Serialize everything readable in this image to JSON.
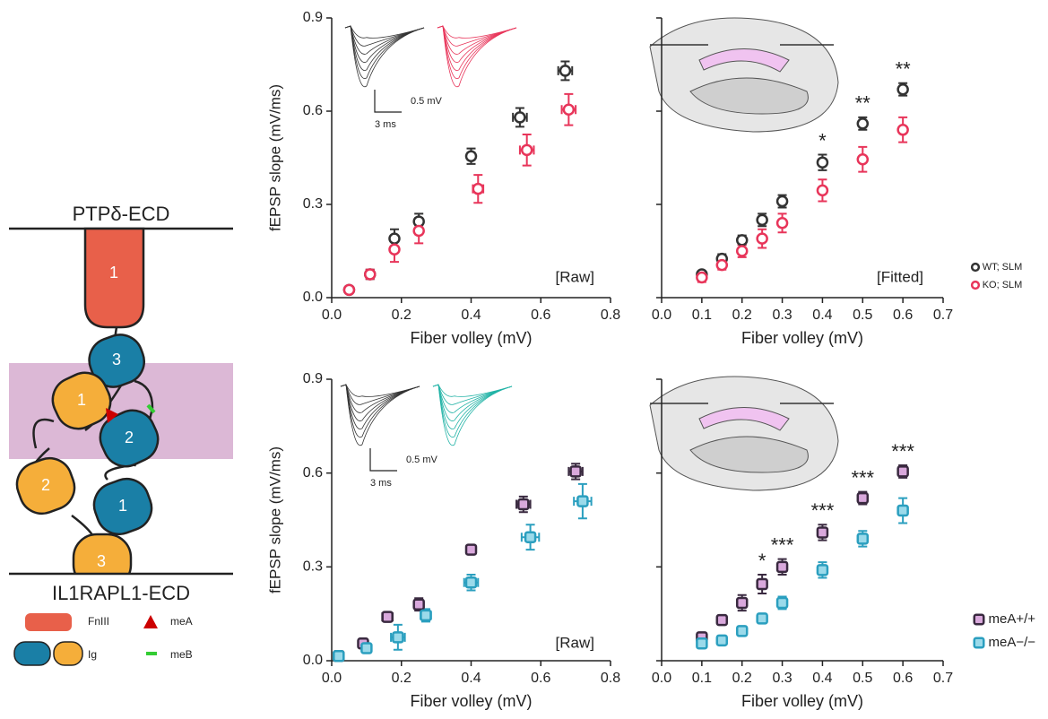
{
  "diagram": {
    "top_label": "PTPδ-ECD",
    "bottom_label": "IL1RAPL1-ECD",
    "domains": {
      "fniii": "1",
      "ig_top": "3",
      "ig_mid": "2",
      "ig_low": "1",
      "ig_orange_top": "1",
      "ig_orange_mid": "2",
      "ig_orange_low": "3"
    },
    "legend": {
      "fniii": "FnIII",
      "ig": "Ig",
      "mea": "meA",
      "meb": "meB"
    }
  },
  "chart_data": [
    {
      "type": "scatter",
      "x_label": "Fiber volley (mV)",
      "y_label": "fEPSP slope (mV/ms)",
      "tag": "[Raw]",
      "inset": {
        "scale_y": "0.5 mV",
        "scale_x": "3 ms",
        "colors": [
          "#333333",
          "#e8355a"
        ]
      },
      "xlim": [
        0,
        0.8
      ],
      "ylim": [
        0,
        0.9
      ],
      "xticks": [
        {
          "value": 0,
          "label": "0.0"
        },
        0.2,
        0.4,
        0.6,
        0.8
      ],
      "yticks": [
        {
          "value": 0,
          "label": "0.0"
        },
        0.3,
        0.6,
        0.9
      ],
      "series": [
        {
          "color": "#333333",
          "fill": "#ffffff",
          "marker": "circle",
          "x": [
            0.05,
            0.11,
            0.18,
            0.25,
            0.4,
            0.54,
            0.67
          ],
          "values": [
            0.025,
            0.075,
            0.19,
            0.245,
            0.455,
            0.58,
            0.73
          ],
          "errors": [
            0.01,
            0.015,
            0.03,
            0.025,
            0.025,
            0.03,
            0.03
          ],
          "x_errors": [
            0,
            0,
            0,
            0.01,
            0.01,
            0.02,
            0.02
          ]
        },
        {
          "color": "#e8355a",
          "fill": "#ffffff",
          "marker": "circle",
          "x": [
            0.05,
            0.11,
            0.18,
            0.25,
            0.42,
            0.56,
            0.68
          ],
          "values": [
            0.025,
            0.075,
            0.155,
            0.215,
            0.35,
            0.475,
            0.605
          ],
          "errors": [
            0.01,
            0.015,
            0.04,
            0.04,
            0.045,
            0.05,
            0.05
          ],
          "x_errors": [
            0,
            0,
            0,
            0.01,
            0.015,
            0.02,
            0.02
          ]
        }
      ]
    },
    {
      "type": "scatter",
      "x_label": "Fiber volley (mV)",
      "tag": "[Fitted]",
      "show_ytick_labels": false,
      "hippocampus": true,
      "xlim": [
        0,
        0.7
      ],
      "ylim": [
        0,
        0.9
      ],
      "xticks": [
        {
          "value": 0,
          "label": "0.0"
        },
        0.1,
        0.2,
        0.3,
        0.4,
        0.5,
        0.6,
        0.7
      ],
      "yticks": [
        0,
        0.3,
        0.6,
        0.9
      ],
      "series": [
        {
          "name": "WT; SLM",
          "color": "#333333",
          "fill": "#ffffff",
          "marker": "circle",
          "x": [
            0.1,
            0.15,
            0.2,
            0.25,
            0.3,
            0.4,
            0.5,
            0.6
          ],
          "values": [
            0.075,
            0.125,
            0.185,
            0.25,
            0.31,
            0.435,
            0.56,
            0.67
          ],
          "errors": [
            0.01,
            0.015,
            0.015,
            0.02,
            0.02,
            0.025,
            0.02,
            0.02
          ],
          "x_errors": [
            0,
            0,
            0,
            0,
            0,
            0,
            0,
            0
          ]
        },
        {
          "name": "KO; SLM",
          "color": "#e8355a",
          "fill": "#ffffff",
          "marker": "circle",
          "x": [
            0.1,
            0.15,
            0.2,
            0.25,
            0.3,
            0.4,
            0.5,
            0.6
          ],
          "values": [
            0.065,
            0.105,
            0.15,
            0.19,
            0.24,
            0.345,
            0.445,
            0.54
          ],
          "errors": [
            0.015,
            0.015,
            0.02,
            0.03,
            0.03,
            0.035,
            0.04,
            0.04
          ],
          "x_errors": [
            0,
            0,
            0,
            0,
            0,
            0,
            0,
            0
          ]
        }
      ],
      "annotations": [
        {
          "text": "*",
          "x": 0.4
        },
        {
          "text": "**",
          "x": 0.5
        },
        {
          "text": "**",
          "x": 0.6
        }
      ]
    },
    {
      "type": "scatter",
      "x_label": "Fiber volley (mV)",
      "y_label": "fEPSP slope (mV/ms)",
      "tag": "[Raw]",
      "inset": {
        "scale_y": "0.5 mV",
        "scale_x": "3 ms",
        "colors": [
          "#333333",
          "#22b3a6"
        ]
      },
      "xlim": [
        0,
        0.8
      ],
      "ylim": [
        0,
        0.9
      ],
      "xticks": [
        {
          "value": 0,
          "label": "0.0"
        },
        0.2,
        0.4,
        0.6,
        0.8
      ],
      "yticks": [
        {
          "value": 0,
          "label": "0.0"
        },
        0.3,
        0.6,
        0.9
      ],
      "series": [
        {
          "color": "#3a2a40",
          "fill": "#d9a8dc",
          "marker": "square",
          "x": [
            0.02,
            0.09,
            0.16,
            0.25,
            0.4,
            0.55,
            0.7
          ],
          "values": [
            0.015,
            0.055,
            0.14,
            0.18,
            0.355,
            0.5,
            0.605
          ],
          "errors": [
            0.005,
            0.01,
            0.015,
            0.02,
            0.01,
            0.025,
            0.025
          ],
          "x_errors": [
            0,
            0,
            0.015,
            0.01,
            0.01,
            0.02,
            0.02
          ]
        },
        {
          "color": "#2b9fbf",
          "fill": "#9bdaea",
          "marker": "square",
          "x": [
            0.02,
            0.1,
            0.19,
            0.27,
            0.4,
            0.57,
            0.72
          ],
          "values": [
            0.015,
            0.04,
            0.075,
            0.145,
            0.25,
            0.395,
            0.51
          ],
          "errors": [
            0.005,
            0.01,
            0.04,
            0.02,
            0.025,
            0.04,
            0.055
          ],
          "x_errors": [
            0,
            0,
            0.02,
            0.015,
            0.02,
            0.025,
            0.025
          ]
        }
      ]
    },
    {
      "type": "scatter",
      "x_label": "Fiber volley (mV)",
      "show_ytick_labels": false,
      "hippocampus": true,
      "xlim": [
        0,
        0.7
      ],
      "ylim": [
        0,
        0.9
      ],
      "xticks": [
        {
          "value": 0,
          "label": "0.0"
        },
        0.1,
        0.2,
        0.3,
        0.4,
        0.5,
        0.6,
        0.7
      ],
      "yticks": [
        0,
        0.3,
        0.6,
        0.9
      ],
      "series": [
        {
          "name": "meA+/+",
          "color": "#3a2a40",
          "fill": "#d9a8dc",
          "marker": "square",
          "x": [
            0.1,
            0.15,
            0.2,
            0.25,
            0.3,
            0.4,
            0.5,
            0.6
          ],
          "values": [
            0.075,
            0.13,
            0.185,
            0.245,
            0.3,
            0.41,
            0.52,
            0.605
          ],
          "errors": [
            0.01,
            0.015,
            0.025,
            0.03,
            0.025,
            0.025,
            0.02,
            0.02
          ],
          "x_errors": [
            0,
            0,
            0,
            0,
            0,
            0,
            0,
            0
          ]
        },
        {
          "name": "meA−/−",
          "color": "#2b9fbf",
          "fill": "#9bdaea",
          "marker": "square",
          "x": [
            0.1,
            0.15,
            0.2,
            0.25,
            0.3,
            0.4,
            0.5,
            0.6
          ],
          "values": [
            0.055,
            0.065,
            0.095,
            0.135,
            0.185,
            0.29,
            0.39,
            0.48
          ],
          "errors": [
            0.01,
            0.015,
            0.015,
            0.015,
            0.02,
            0.025,
            0.025,
            0.04
          ],
          "x_errors": [
            0,
            0,
            0,
            0,
            0,
            0,
            0,
            0
          ]
        }
      ],
      "annotations": [
        {
          "text": "*",
          "x": 0.25
        },
        {
          "text": "***",
          "x": 0.3
        },
        {
          "text": "***",
          "x": 0.4
        },
        {
          "text": "***",
          "x": 0.5
        },
        {
          "text": "***",
          "x": 0.6
        }
      ]
    }
  ]
}
